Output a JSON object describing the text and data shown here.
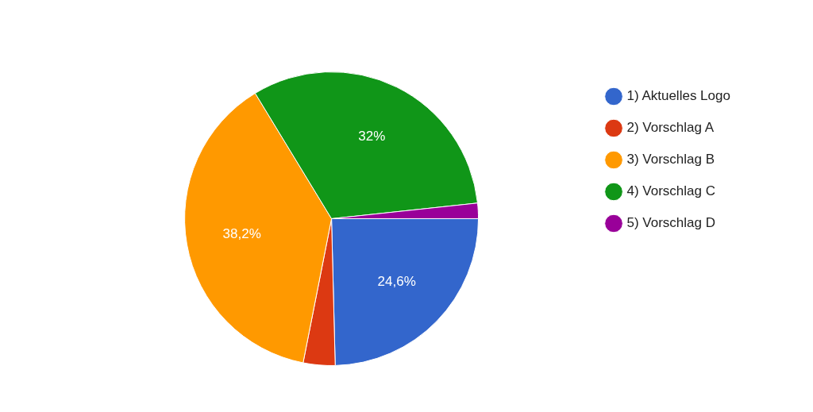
{
  "chart_data": {
    "type": "pie",
    "categories": [
      "1) Aktuelles Logo",
      "2) Vorschlag A",
      "3) Vorschlag B",
      "4) Vorschlag C",
      "5) Vorschlag D"
    ],
    "values": [
      24.6,
      3.5,
      38.2,
      32,
      1.7
    ],
    "colors": [
      "#3366cc",
      "#dc3912",
      "#ff9900",
      "#109618",
      "#990099"
    ],
    "value_labels": [
      "24,6%",
      null,
      "38,2%",
      "32%",
      null
    ],
    "legend": "right"
  }
}
